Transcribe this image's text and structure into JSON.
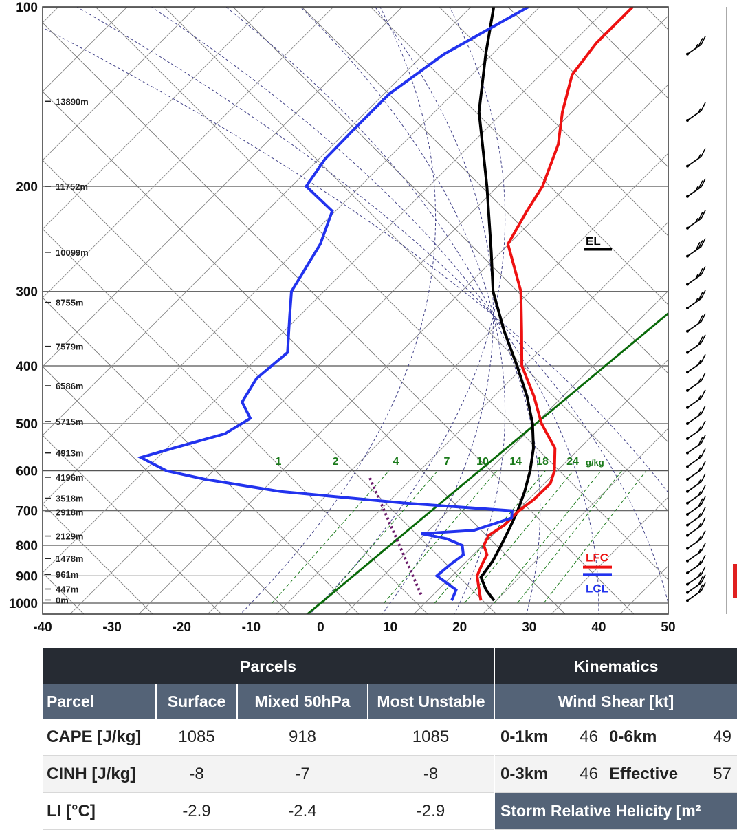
{
  "chart_data": {
    "type": "skew-t",
    "pressure_levels": [
      100,
      200,
      300,
      400,
      500,
      600,
      700,
      800,
      900,
      1000
    ],
    "x_ticks": [
      -40,
      -30,
      -20,
      -10,
      0,
      10,
      20,
      30,
      40,
      50
    ],
    "xlim": [
      -40,
      50
    ],
    "ylim_hpa": [
      1000,
      100
    ],
    "heights": [
      {
        "label": "13890m",
        "p": 144
      },
      {
        "label": "11752m",
        "p": 200
      },
      {
        "label": "10099m",
        "p": 258
      },
      {
        "label": "8755m",
        "p": 313
      },
      {
        "label": "7579m",
        "p": 371
      },
      {
        "label": "6586m",
        "p": 432
      },
      {
        "label": "5715m",
        "p": 496
      },
      {
        "label": "4913m",
        "p": 560
      },
      {
        "label": "4196m",
        "p": 615
      },
      {
        "label": "3518m",
        "p": 667
      },
      {
        "label": "2918m",
        "p": 703
      },
      {
        "label": "2129m",
        "p": 772
      },
      {
        "label": "1478m",
        "p": 842
      },
      {
        "label": "961m",
        "p": 895
      },
      {
        "label": "447m",
        "p": 947
      },
      {
        "label": "0m",
        "p": 988
      }
    ],
    "mixing_ratio_labels": [
      "1",
      "2",
      "4",
      "7",
      "10",
      "14",
      "18",
      "24"
    ],
    "mixing_ratio_unit": "g/kg",
    "temperature": [
      {
        "p": 990,
        "t": 22.6
      },
      {
        "p": 950,
        "t": 20.5
      },
      {
        "p": 900,
        "t": 17.8
      },
      {
        "p": 860,
        "t": 16.5
      },
      {
        "p": 830,
        "t": 15.6
      },
      {
        "p": 800,
        "t": 13.5
      },
      {
        "p": 770,
        "t": 12.5
      },
      {
        "p": 740,
        "t": 13.0
      },
      {
        "p": 700,
        "t": 12.6
      },
      {
        "p": 670,
        "t": 12.8
      },
      {
        "p": 630,
        "t": 12.4
      },
      {
        "p": 600,
        "t": 10.8
      },
      {
        "p": 550,
        "t": 7.0
      },
      {
        "p": 500,
        "t": 0.8
      },
      {
        "p": 450,
        "t": -5.0
      },
      {
        "p": 400,
        "t": -12.0
      },
      {
        "p": 350,
        "t": -18.0
      },
      {
        "p": 300,
        "t": -25.0
      },
      {
        "p": 250,
        "t": -35.0
      },
      {
        "p": 220,
        "t": -38.0
      },
      {
        "p": 200,
        "t": -40.0
      },
      {
        "p": 170,
        "t": -45.0
      },
      {
        "p": 150,
        "t": -50.0
      },
      {
        "p": 130,
        "t": -55.0
      },
      {
        "p": 115,
        "t": -57.0
      },
      {
        "p": 100,
        "t": -58.0
      }
    ],
    "dewpoint": [
      {
        "p": 990,
        "t": 18.4
      },
      {
        "p": 950,
        "t": 17.2
      },
      {
        "p": 900,
        "t": 12.0
      },
      {
        "p": 860,
        "t": 12.0
      },
      {
        "p": 830,
        "t": 12.2
      },
      {
        "p": 800,
        "t": 10.4
      },
      {
        "p": 780,
        "t": 7.0
      },
      {
        "p": 765,
        "t": 2.5
      },
      {
        "p": 755,
        "t": 9.5
      },
      {
        "p": 720,
        "t": 12.8
      },
      {
        "p": 700,
        "t": 11.6
      },
      {
        "p": 680,
        "t": -5.0
      },
      {
        "p": 650,
        "t": -25.0
      },
      {
        "p": 620,
        "t": -38.0
      },
      {
        "p": 600,
        "t": -45.0
      },
      {
        "p": 570,
        "t": -51.0
      },
      {
        "p": 550,
        "t": -48.0
      },
      {
        "p": 520,
        "t": -43.0
      },
      {
        "p": 490,
        "t": -42.0
      },
      {
        "p": 460,
        "t": -46.0
      },
      {
        "p": 420,
        "t": -48.0
      },
      {
        "p": 380,
        "t": -48.0
      },
      {
        "p": 330,
        "t": -54.0
      },
      {
        "p": 300,
        "t": -58.0
      },
      {
        "p": 250,
        "t": -62.0
      },
      {
        "p": 220,
        "t": -66.0
      },
      {
        "p": 200,
        "t": -74.0
      },
      {
        "p": 180,
        "t": -76.0
      },
      {
        "p": 160,
        "t": -77.0
      },
      {
        "p": 140,
        "t": -78.0
      },
      {
        "p": 120,
        "t": -77.0
      },
      {
        "p": 100,
        "t": -73.0
      }
    ],
    "parcel": [
      {
        "p": 990,
        "t": 24.5
      },
      {
        "p": 950,
        "t": 21.5
      },
      {
        "p": 905,
        "t": 18.6
      },
      {
        "p": 850,
        "t": 17.5
      },
      {
        "p": 800,
        "t": 16.0
      },
      {
        "p": 750,
        "t": 14.3
      },
      {
        "p": 700,
        "t": 12.4
      },
      {
        "p": 650,
        "t": 10.1
      },
      {
        "p": 600,
        "t": 7.3
      },
      {
        "p": 550,
        "t": 3.9
      },
      {
        "p": 500,
        "t": -0.5
      },
      {
        "p": 450,
        "t": -6.0
      },
      {
        "p": 400,
        "t": -12.7
      },
      {
        "p": 350,
        "t": -20.5
      },
      {
        "p": 300,
        "t": -29.0
      },
      {
        "p": 258,
        "t": -36.0
      },
      {
        "p": 200,
        "t": -48.0
      },
      {
        "p": 150,
        "t": -62.0
      },
      {
        "p": 120,
        "t": -71.0
      },
      {
        "p": 100,
        "t": -78.0
      }
    ],
    "lfc_p": 870,
    "lcl_p": 905,
    "el_p": 255,
    "level_labels": {
      "el": "EL",
      "lfc": "LFC",
      "lcl": "LCL"
    },
    "wind_barbs": [
      {
        "p": 120,
        "speed_kt": 25
      },
      {
        "p": 155,
        "speed_kt": 15
      },
      {
        "p": 185,
        "speed_kt": 15
      },
      {
        "p": 208,
        "speed_kt": 25
      },
      {
        "p": 235,
        "speed_kt": 25
      },
      {
        "p": 262,
        "speed_kt": 30
      },
      {
        "p": 292,
        "speed_kt": 25
      },
      {
        "p": 320,
        "speed_kt": 25
      },
      {
        "p": 350,
        "speed_kt": 20
      },
      {
        "p": 380,
        "speed_kt": 20
      },
      {
        "p": 410,
        "speed_kt": 15
      },
      {
        "p": 440,
        "speed_kt": 15
      },
      {
        "p": 470,
        "speed_kt": 15
      },
      {
        "p": 500,
        "speed_kt": 15
      },
      {
        "p": 530,
        "speed_kt": 15
      },
      {
        "p": 560,
        "speed_kt": 20
      },
      {
        "p": 590,
        "speed_kt": 15
      },
      {
        "p": 620,
        "speed_kt": 15
      },
      {
        "p": 650,
        "speed_kt": 15
      },
      {
        "p": 680,
        "speed_kt": 15
      },
      {
        "p": 710,
        "speed_kt": 20
      },
      {
        "p": 740,
        "speed_kt": 15
      },
      {
        "p": 770,
        "speed_kt": 15
      },
      {
        "p": 810,
        "speed_kt": 15
      },
      {
        "p": 850,
        "speed_kt": 15
      },
      {
        "p": 890,
        "speed_kt": 15
      },
      {
        "p": 930,
        "speed_kt": 15
      },
      {
        "p": 960,
        "speed_kt": 20
      },
      {
        "p": 990,
        "speed_kt": 20
      }
    ],
    "colors": {
      "temperature": "#ee1111",
      "dewpoint": "#2233ee",
      "parcel": "#000000",
      "isobars": "#555555",
      "dry_adiabats": "#444444",
      "moist_adiabats": "#44448a",
      "mixing_ratio": "#1a7a1a",
      "freezing_line": "#0a6a0a",
      "wetbulb": "#6a1a6a"
    }
  },
  "tables": {
    "parcels": {
      "title": "Parcels",
      "columns": [
        "Parcel",
        "Surface",
        "Mixed 50hPa",
        "Most Unstable"
      ],
      "rows": [
        {
          "label": "CAPE [J/kg]",
          "surface": "1085",
          "mixed": "918",
          "mu": "1085"
        },
        {
          "label": "CINH [J/kg]",
          "surface": "-8",
          "mixed": "-7",
          "mu": "-8"
        },
        {
          "label": "LI [°C]",
          "surface": "-2.9",
          "mixed": "-2.4",
          "mu": "-2.9"
        }
      ]
    },
    "kinematics": {
      "title": "Kinematics",
      "subheader": "Wind Shear [kt]",
      "rows": [
        {
          "l1": "0-1km",
          "v1": "46",
          "l2": "0-6km",
          "v2": "49"
        },
        {
          "l1": "0-3km",
          "v1": "46",
          "l2": "Effective",
          "v2": "57"
        }
      ],
      "srh_label": "Storm Relative Helicity [m²"
    }
  }
}
